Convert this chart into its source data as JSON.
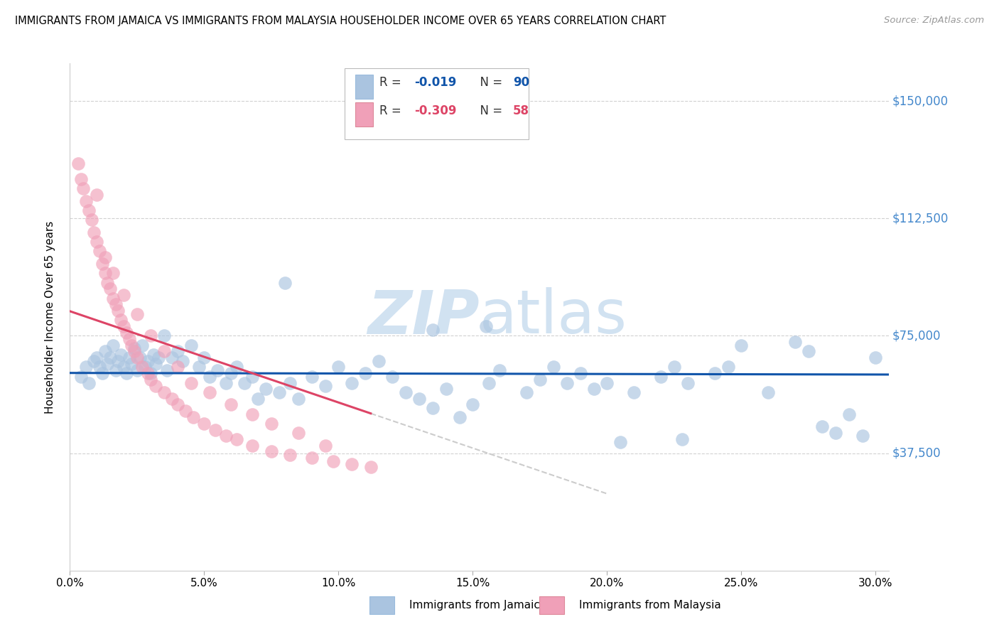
{
  "title": "IMMIGRANTS FROM JAMAICA VS IMMIGRANTS FROM MALAYSIA HOUSEHOLDER INCOME OVER 65 YEARS CORRELATION CHART",
  "source": "Source: ZipAtlas.com",
  "ylabel": "Householder Income Over 65 years",
  "ytick_labels": [
    "$37,500",
    "$75,000",
    "$112,500",
    "$150,000"
  ],
  "ytick_vals": [
    37500,
    75000,
    112500,
    150000
  ],
  "ylim": [
    0,
    162000
  ],
  "xlim": [
    0,
    30.5
  ],
  "xtick_vals": [
    0,
    5,
    10,
    15,
    20,
    25,
    30
  ],
  "xtick_labels": [
    "0.0%",
    "5.0%",
    "10.0%",
    "15.0%",
    "20.0%",
    "25.0%",
    "30.0%"
  ],
  "jamaica_R": "-0.019",
  "jamaica_N": "90",
  "malaysia_R": "-0.309",
  "malaysia_N": "58",
  "jamaica_color": "#aac4e0",
  "malaysia_color": "#f0a0b8",
  "jamaica_line_color": "#1155aa",
  "malaysia_line_color": "#dd4466",
  "trendline_gray": "#cccccc",
  "background_color": "#ffffff",
  "grid_color": "#cccccc",
  "right_label_color": "#4488cc",
  "watermark_color": "#ccdff0",
  "jamaica_x": [
    0.4,
    0.6,
    0.7,
    0.9,
    1.0,
    1.1,
    1.2,
    1.3,
    1.4,
    1.5,
    1.6,
    1.7,
    1.8,
    1.9,
    2.0,
    2.1,
    2.2,
    2.3,
    2.4,
    2.5,
    2.6,
    2.7,
    2.8,
    2.9,
    3.0,
    3.1,
    3.2,
    3.3,
    3.5,
    3.6,
    3.8,
    4.0,
    4.2,
    4.5,
    4.8,
    5.0,
    5.2,
    5.5,
    5.8,
    6.0,
    6.2,
    6.5,
    6.8,
    7.0,
    7.3,
    7.8,
    8.2,
    8.5,
    9.0,
    9.5,
    10.0,
    10.5,
    11.0,
    11.5,
    12.0,
    12.5,
    13.0,
    13.5,
    14.0,
    14.5,
    15.0,
    16.0,
    17.0,
    18.0,
    18.5,
    19.0,
    19.5,
    20.0,
    21.0,
    22.0,
    22.5,
    23.0,
    24.0,
    24.5,
    25.0,
    26.0,
    27.0,
    27.5,
    28.0,
    28.5,
    29.0,
    29.5,
    30.0,
    8.0,
    13.5,
    15.5,
    15.6,
    17.5,
    20.5,
    22.8
  ],
  "jamaica_y": [
    62000,
    65000,
    60000,
    67000,
    68000,
    65000,
    63000,
    70000,
    66000,
    68000,
    72000,
    64000,
    67000,
    69000,
    65000,
    63000,
    68000,
    66000,
    71000,
    64000,
    68000,
    72000,
    65000,
    67000,
    63000,
    69000,
    66000,
    68000,
    75000,
    64000,
    68000,
    70000,
    67000,
    72000,
    65000,
    68000,
    62000,
    64000,
    60000,
    63000,
    65000,
    60000,
    62000,
    55000,
    58000,
    57000,
    60000,
    55000,
    62000,
    59000,
    65000,
    60000,
    63000,
    67000,
    62000,
    57000,
    55000,
    52000,
    58000,
    49000,
    53000,
    64000,
    57000,
    65000,
    60000,
    63000,
    58000,
    60000,
    57000,
    62000,
    65000,
    60000,
    63000,
    65000,
    72000,
    57000,
    73000,
    70000,
    46000,
    44000,
    50000,
    43000,
    68000,
    92000,
    77000,
    78000,
    60000,
    61000,
    41000,
    42000
  ],
  "malaysia_x": [
    0.3,
    0.4,
    0.5,
    0.6,
    0.7,
    0.8,
    0.9,
    1.0,
    1.1,
    1.2,
    1.3,
    1.4,
    1.5,
    1.6,
    1.7,
    1.8,
    1.9,
    2.0,
    2.1,
    2.2,
    2.3,
    2.4,
    2.5,
    2.7,
    2.9,
    3.0,
    3.2,
    3.5,
    3.8,
    4.0,
    4.3,
    4.6,
    5.0,
    5.4,
    5.8,
    6.2,
    6.8,
    7.5,
    8.2,
    9.0,
    9.8,
    10.5,
    11.2,
    1.0,
    1.3,
    1.6,
    2.0,
    2.5,
    3.0,
    3.5,
    4.0,
    4.5,
    5.2,
    6.0,
    6.8,
    7.5,
    8.5,
    9.5
  ],
  "malaysia_y": [
    130000,
    125000,
    122000,
    118000,
    115000,
    112000,
    108000,
    105000,
    102000,
    98000,
    95000,
    92000,
    90000,
    87000,
    85000,
    83000,
    80000,
    78000,
    76000,
    74000,
    72000,
    70000,
    68000,
    65000,
    63000,
    61000,
    59000,
    57000,
    55000,
    53000,
    51000,
    49000,
    47000,
    45000,
    43000,
    42000,
    40000,
    38000,
    37000,
    36000,
    35000,
    34000,
    33000,
    120000,
    100000,
    95000,
    88000,
    82000,
    75000,
    70000,
    65000,
    60000,
    57000,
    53000,
    50000,
    47000,
    44000,
    40000
  ]
}
